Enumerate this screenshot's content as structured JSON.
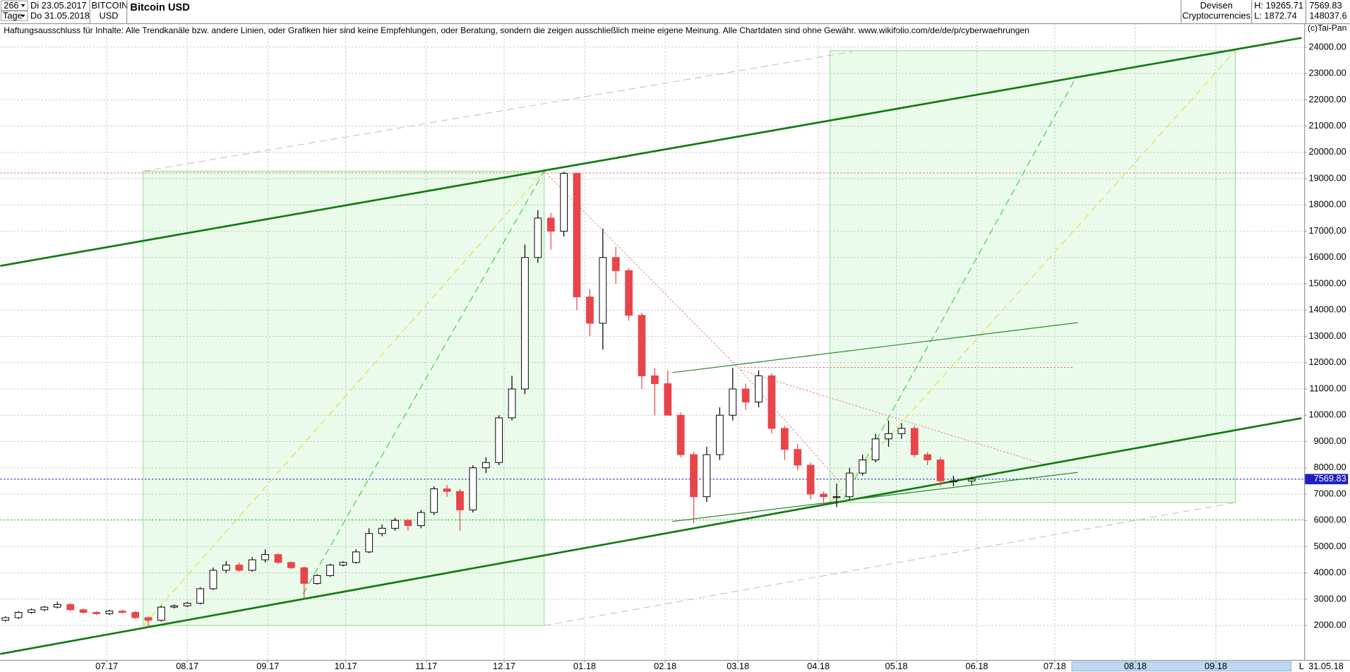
{
  "header": {
    "count": "266",
    "from": "Di 23.05.2017",
    "period": "Tage",
    "to": "Do 31.05.2018",
    "symbol": "BITCOIN",
    "currency": "USD",
    "group": "Devisen",
    "subgroup": "Cryptocurrencies",
    "high": "H: 19265.71",
    "low": "L: 1872.74",
    "last": "7569.83",
    "volume": "148037.6",
    "disclaimer": "Haftungsausschluss für Inhalte: Alle Trendkanäle bzw. andere Linien, oder Grafiken hier sind keine Empfehlungen, oder Beratung, sondern die zeigen ausschließlich meine eigene Meinung. Alle Chartdaten sind ohne Gewähr.  www.wikifolio.com/de/de/p/cyberwaehrungen",
    "copyright": "(c)Tai-Pan"
  },
  "footer": {
    "date": "31.05.18",
    "scale": "L"
  },
  "chart_data": {
    "type": "candlestick",
    "title": "Bitcoin USD",
    "x": [
      0,
      5,
      10,
      15,
      20,
      25,
      30,
      35,
      40,
      45,
      50,
      55,
      60,
      65,
      70,
      75,
      80,
      85,
      90,
      95,
      100,
      105,
      110,
      115,
      120,
      125,
      130,
      135,
      140,
      145,
      150,
      155,
      160,
      165,
      170,
      175,
      180,
      185,
      190,
      195,
      200,
      205,
      210,
      215,
      220,
      225,
      230,
      235,
      240,
      245,
      250,
      255,
      260,
      265,
      270,
      275,
      280,
      285,
      290,
      295,
      300,
      305,
      310,
      315,
      320,
      325,
      330,
      335,
      340,
      345,
      350,
      355,
      360,
      365,
      372
    ],
    "open": [
      2200,
      2300,
      2500,
      2600,
      2700,
      2800,
      2600,
      2500,
      2450,
      2550,
      2500,
      2300,
      2200,
      2700,
      2750,
      2850,
      3400,
      4100,
      4300,
      4100,
      4500,
      4700,
      4400,
      4200,
      3600,
      3900,
      4300,
      4400,
      4800,
      5500,
      5700,
      6000,
      5800,
      6300,
      7200,
      7100,
      6400,
      8000,
      8200,
      9900,
      11000,
      16000,
      17500,
      17000,
      19200,
      14500,
      13500,
      16000,
      15500,
      13800,
      11500,
      11200,
      10000,
      8500,
      6900,
      8500,
      10000,
      11000,
      10500,
      11500,
      9500,
      8700,
      8100,
      7000,
      6900,
      6900,
      7800,
      8300,
      9100,
      9300,
      9500,
      8500,
      8300,
      7500,
      7500
    ],
    "high": [
      2350,
      2550,
      2650,
      2750,
      2900,
      2850,
      2650,
      2550,
      2600,
      2600,
      2550,
      2350,
      2750,
      2800,
      2900,
      3450,
      4200,
      4450,
      4400,
      4600,
      4900,
      4750,
      4450,
      4250,
      3950,
      4350,
      4450,
      4900,
      5700,
      5850,
      6100,
      6050,
      6400,
      7300,
      7350,
      7200,
      8100,
      8400,
      10000,
      11500,
      16500,
      17800,
      17700,
      19265,
      19200,
      14800,
      17100,
      16400,
      15600,
      13900,
      11800,
      11700,
      10100,
      8600,
      8800,
      10300,
      11800,
      11200,
      11700,
      11600,
      9600,
      8900,
      8200,
      7100,
      7400,
      8000,
      8500,
      9300,
      9800,
      9700,
      9600,
      8600,
      8400,
      7700,
      7650
    ],
    "low": [
      2150,
      2250,
      2450,
      2550,
      2650,
      2550,
      2450,
      2400,
      2400,
      2450,
      2250,
      1900,
      2150,
      2650,
      2700,
      2800,
      3350,
      4000,
      4050,
      4050,
      4400,
      4350,
      4150,
      3000,
      3550,
      3850,
      4250,
      4350,
      4750,
      5400,
      5600,
      5600,
      5700,
      6200,
      6900,
      5600,
      6300,
      7800,
      8100,
      9800,
      10800,
      15800,
      16300,
      16800,
      14000,
      13000,
      12500,
      15000,
      13600,
      11000,
      10000,
      10200,
      8400,
      5900,
      6700,
      8300,
      9800,
      10200,
      10300,
      9300,
      8300,
      7900,
      6800,
      6600,
      6500,
      6800,
      7700,
      8200,
      8800,
      9100,
      8400,
      8100,
      7300,
      7300,
      7350
    ],
    "close": [
      2300,
      2500,
      2600,
      2700,
      2800,
      2600,
      2500,
      2450,
      2550,
      2500,
      2300,
      2200,
      2700,
      2750,
      2850,
      3400,
      4100,
      4300,
      4100,
      4500,
      4700,
      4400,
      4200,
      3600,
      3900,
      4300,
      4400,
      4800,
      5500,
      5700,
      6000,
      5800,
      6300,
      7200,
      7100,
      6400,
      8000,
      8200,
      9900,
      11000,
      16000,
      17500,
      17000,
      19200,
      14500,
      13500,
      16000,
      15500,
      13800,
      11500,
      11200,
      10000,
      8500,
      6900,
      8500,
      10000,
      11000,
      10500,
      11500,
      9500,
      8700,
      8100,
      7000,
      6900,
      6900,
      7800,
      8300,
      9100,
      9300,
      9500,
      8500,
      8300,
      7500,
      7500,
      7570
    ],
    "up_color": "#ffffff",
    "down_color": "#e8454a",
    "xlim": [
      -2,
      500
    ],
    "xticks": [
      {
        "value": 39,
        "label": "07.17"
      },
      {
        "value": 70,
        "label": "08.17"
      },
      {
        "value": 101,
        "label": "09.17"
      },
      {
        "value": 131,
        "label": "10.17"
      },
      {
        "value": 162,
        "label": "11.17"
      },
      {
        "value": 192,
        "label": "12.17"
      },
      {
        "value": 223,
        "label": "01.18"
      },
      {
        "value": 254,
        "label": "02.18"
      },
      {
        "value": 282,
        "label": "03.18"
      },
      {
        "value": 313,
        "label": "04.18"
      },
      {
        "value": 343,
        "label": "05.18"
      },
      {
        "value": 374,
        "label": "06.18"
      },
      {
        "value": 404,
        "label": "07.18"
      },
      {
        "value": 435,
        "label": "08.18"
      },
      {
        "value": 466,
        "label": "09.18"
      }
    ],
    "ylim": [
      690,
      24880
    ],
    "yticks": [
      {
        "value": 2000,
        "label": "2000.00"
      },
      {
        "value": 3000,
        "label": "3000.00"
      },
      {
        "value": 4000,
        "label": "4000.00"
      },
      {
        "value": 5000,
        "label": "5000.00"
      },
      {
        "value": 6000,
        "label": "6000.00"
      },
      {
        "value": 7000,
        "label": "7000.00"
      },
      {
        "value": 8000,
        "label": "8000.00"
      },
      {
        "value": 9000,
        "label": "9000.00"
      },
      {
        "value": 10000,
        "label": "10000.00"
      },
      {
        "value": 11000,
        "label": "11000.00"
      },
      {
        "value": 12000,
        "label": "12000.00"
      },
      {
        "value": 13000,
        "label": "13000.00"
      },
      {
        "value": 14000,
        "label": "14000.00"
      },
      {
        "value": 15000,
        "label": "15000.00"
      },
      {
        "value": 16000,
        "label": "16000.00"
      },
      {
        "value": 17000,
        "label": "17000.00"
      },
      {
        "value": 18000,
        "label": "18000.00"
      },
      {
        "value": 19000,
        "label": "19000.00"
      },
      {
        "value": 20000,
        "label": "20000.00"
      },
      {
        "value": 21000,
        "label": "21000.00"
      },
      {
        "value": 22000,
        "label": "22000.00"
      },
      {
        "value": 23000,
        "label": "23000.00"
      },
      {
        "value": 24000,
        "label": "24000.00"
      }
    ],
    "last_price": 7569.83,
    "grid": true
  }
}
